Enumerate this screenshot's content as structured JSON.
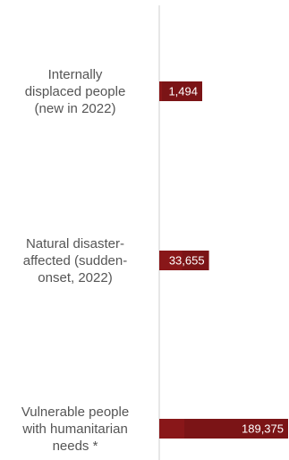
{
  "chart_data": {
    "type": "bar",
    "orientation": "horizontal",
    "categories": [
      [
        "Internally",
        "displaced people",
        "(new in 2022)"
      ],
      [
        "Natural disaster-",
        "affected (sudden-",
        "onset, 2022)"
      ],
      [
        "Vulnerable people",
        "with humanitarian",
        "needs *"
      ]
    ],
    "values": [
      1494,
      33655,
      189375
    ],
    "value_labels": [
      "1,494",
      "33,655",
      "189,375"
    ],
    "title": "",
    "xlabel": "",
    "ylabel": "",
    "xlim": [
      0,
      189375
    ],
    "grid": false,
    "legend": "none",
    "colors": {
      "bar": "#7b1416",
      "bar_highlight": "#961a1d",
      "axis": "#cfcfcf",
      "label": "#555555"
    }
  }
}
